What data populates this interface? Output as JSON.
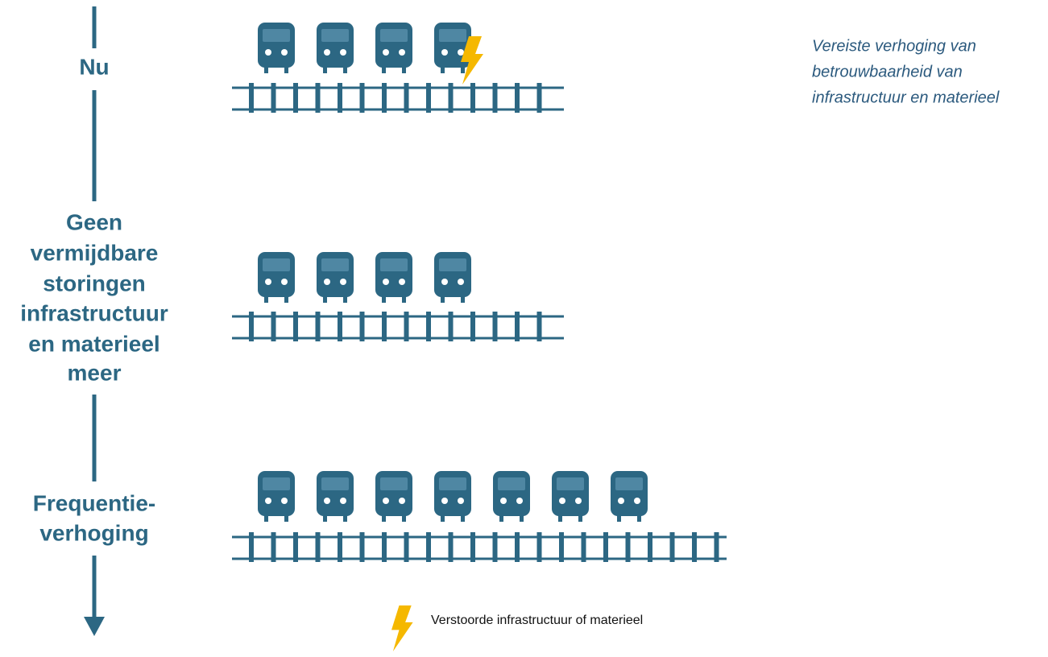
{
  "stages": [
    {
      "lines": [
        "Nu"
      ]
    },
    {
      "lines": [
        "Geen",
        "vermijdbare",
        "storingen",
        "infrastructuur",
        "en materieel",
        "meer"
      ]
    },
    {
      "lines": [
        "Frequentie-",
        "verhoging"
      ]
    }
  ],
  "note": {
    "lines": [
      "Vereiste verhoging van",
      "betrouwbaarheid van",
      "infrastructuur en materieel"
    ]
  },
  "legend": {
    "label": "Verstoorde infrastructuur of materieel"
  }
}
